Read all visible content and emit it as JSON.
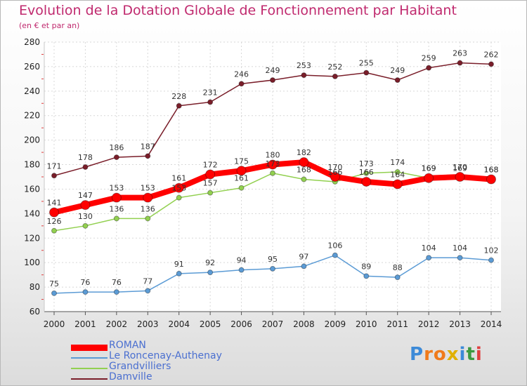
{
  "title": "Evolution de la Dotation Globale de Fonctionnement par Habitant",
  "subtitle": "(en € et par an)",
  "logo": {
    "letters": [
      "P",
      "r",
      "o",
      "x",
      "i",
      "t",
      "i"
    ],
    "colors": [
      "#3c8ad8",
      "#f07a1a",
      "#f07a1a",
      "#e0b000",
      "#3c8ad8",
      "#3c9a40",
      "#e04040"
    ]
  },
  "chart_data": {
    "type": "line",
    "x": [
      2000,
      2001,
      2002,
      2003,
      2004,
      2005,
      2006,
      2007,
      2008,
      2009,
      2010,
      2011,
      2012,
      2013,
      2014
    ],
    "ylim": [
      60,
      280
    ],
    "yticks": [
      60,
      80,
      100,
      120,
      140,
      160,
      180,
      200,
      220,
      240,
      260,
      280
    ],
    "grid": true,
    "legend": "bottom-left",
    "series": [
      {
        "name": "Damville",
        "color": "#7a1e2a",
        "values": [
          171,
          178,
          186,
          187,
          228,
          231,
          246,
          249,
          253,
          252,
          255,
          249,
          259,
          263,
          262
        ]
      },
      {
        "name": "Le Roncenay-Authenay",
        "color": "#5b9bd5",
        "values": [
          75,
          76,
          76,
          77,
          91,
          92,
          94,
          95,
          97,
          106,
          89,
          88,
          104,
          104,
          102
        ]
      },
      {
        "name": "Grandvilliers",
        "color": "#92d050",
        "values": [
          126,
          130,
          136,
          136,
          153,
          157,
          161,
          173,
          168,
          166,
          173,
          174,
          169,
          169,
          168
        ]
      },
      {
        "name": "ROMAN",
        "color": "#ff0000",
        "values": [
          141,
          147,
          153,
          153,
          161,
          172,
          175,
          180,
          182,
          170,
          166,
          164,
          169,
          170,
          168
        ]
      }
    ]
  }
}
